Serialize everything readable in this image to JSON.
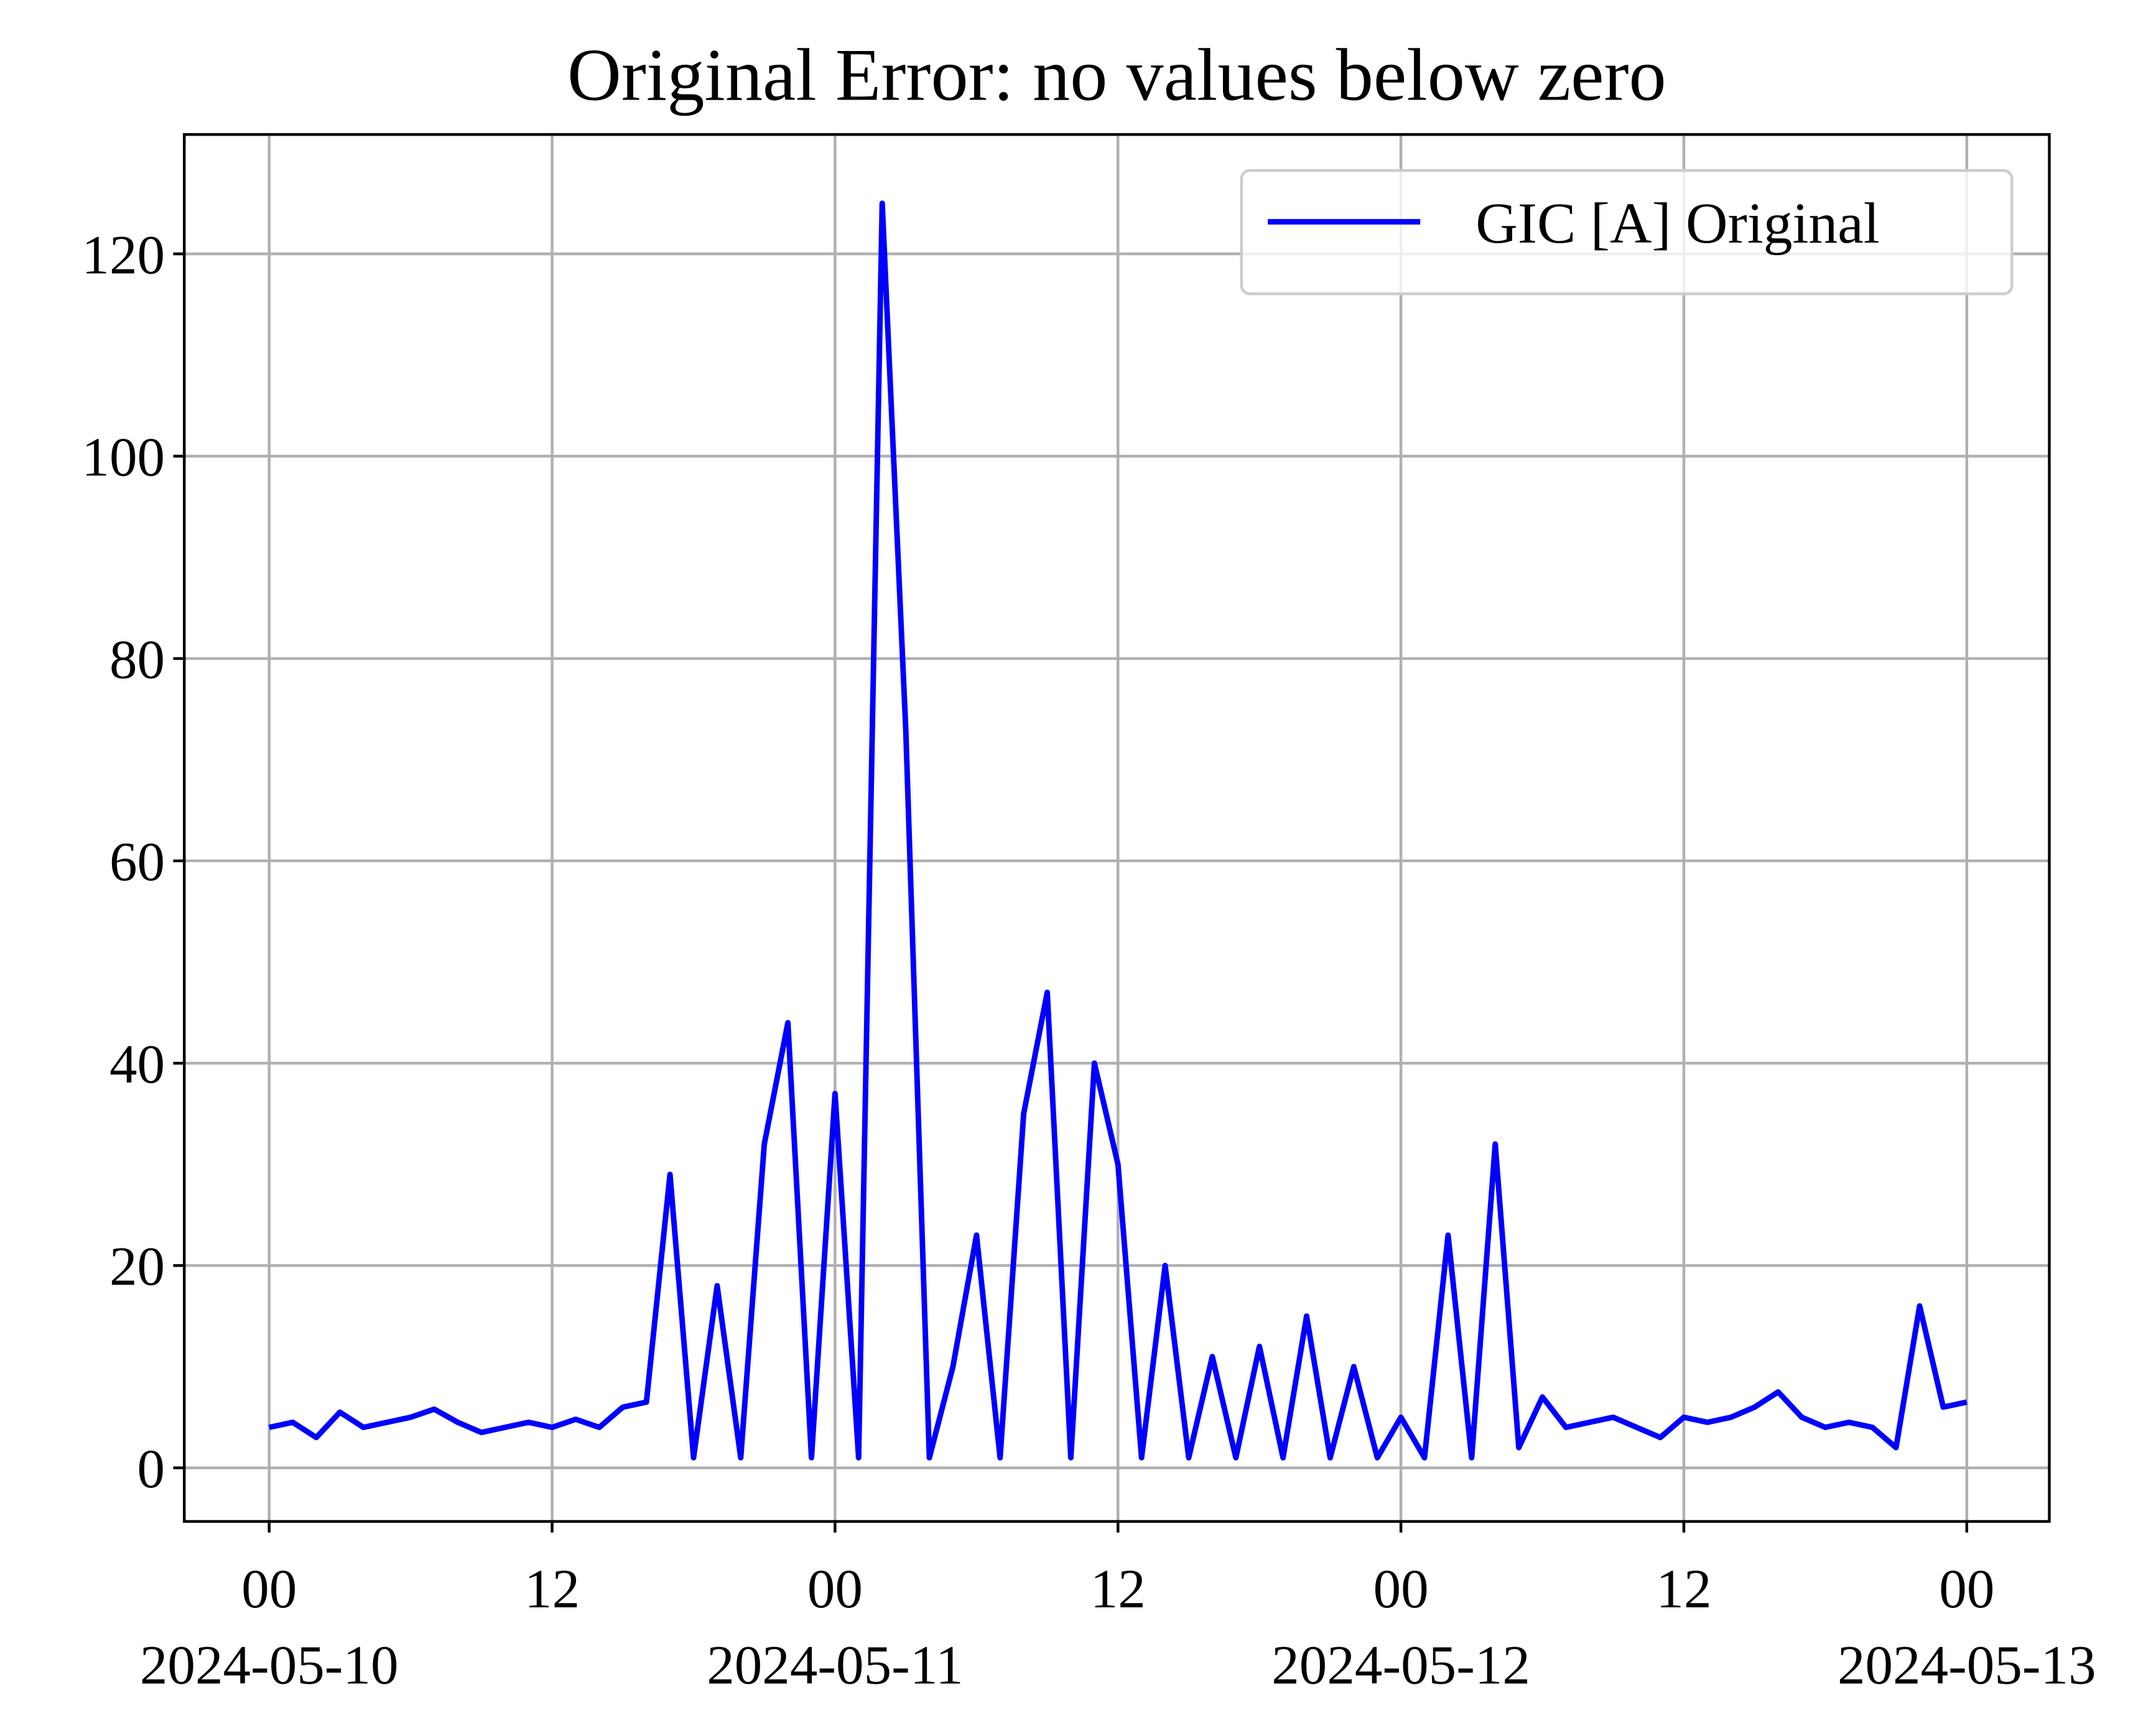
{
  "chart_data": {
    "type": "line",
    "title": "Original Error: no values below zero",
    "x": [
      "2024-05-10T00:00",
      "2024-05-10T01:00",
      "2024-05-10T02:00",
      "2024-05-10T03:00",
      "2024-05-10T04:00",
      "2024-05-10T05:00",
      "2024-05-10T06:00",
      "2024-05-10T07:00",
      "2024-05-10T08:00",
      "2024-05-10T09:00",
      "2024-05-10T10:00",
      "2024-05-10T11:00",
      "2024-05-10T12:00",
      "2024-05-10T13:00",
      "2024-05-10T14:00",
      "2024-05-10T15:00",
      "2024-05-10T16:00",
      "2024-05-10T17:00",
      "2024-05-10T18:00",
      "2024-05-10T19:00",
      "2024-05-10T20:00",
      "2024-05-10T21:00",
      "2024-05-10T22:00",
      "2024-05-10T23:00",
      "2024-05-11T00:00",
      "2024-05-11T01:00",
      "2024-05-11T02:00",
      "2024-05-11T03:00",
      "2024-05-11T04:00",
      "2024-05-11T05:00",
      "2024-05-11T06:00",
      "2024-05-11T07:00",
      "2024-05-11T08:00",
      "2024-05-11T09:00",
      "2024-05-11T10:00",
      "2024-05-11T11:00",
      "2024-05-11T12:00",
      "2024-05-11T13:00",
      "2024-05-11T14:00",
      "2024-05-11T15:00",
      "2024-05-11T16:00",
      "2024-05-11T17:00",
      "2024-05-11T18:00",
      "2024-05-11T19:00",
      "2024-05-11T20:00",
      "2024-05-11T21:00",
      "2024-05-11T22:00",
      "2024-05-11T23:00",
      "2024-05-12T00:00",
      "2024-05-12T01:00",
      "2024-05-12T02:00",
      "2024-05-12T03:00",
      "2024-05-12T04:00",
      "2024-05-12T05:00",
      "2024-05-12T06:00",
      "2024-05-12T07:00",
      "2024-05-12T08:00",
      "2024-05-12T09:00",
      "2024-05-12T10:00",
      "2024-05-12T11:00",
      "2024-05-12T12:00",
      "2024-05-12T13:00",
      "2024-05-12T14:00",
      "2024-05-12T15:00",
      "2024-05-12T16:00",
      "2024-05-12T17:00",
      "2024-05-12T18:00",
      "2024-05-12T19:00",
      "2024-05-12T20:00",
      "2024-05-12T21:00",
      "2024-05-12T22:00",
      "2024-05-12T23:00",
      "2024-05-13T00:00"
    ],
    "series": [
      {
        "name": "GIC [A] Original",
        "color": "#0000ff",
        "values": [
          4,
          4.5,
          3,
          5.5,
          4,
          4.5,
          5,
          5.8,
          4.5,
          3.5,
          4,
          4.5,
          4,
          4.8,
          4,
          6,
          6.5,
          29,
          1,
          18,
          1,
          32,
          44,
          1,
          37,
          1,
          125,
          73,
          1,
          10,
          23,
          1,
          35,
          47,
          1,
          40,
          30,
          1,
          20,
          1,
          11,
          1,
          12,
          1,
          15,
          1,
          10,
          1,
          5,
          1,
          23,
          1,
          32,
          2,
          7,
          4,
          4.5,
          5,
          4,
          3,
          5,
          4.5,
          5,
          6,
          7.5,
          5,
          4,
          4.5,
          4,
          2,
          16,
          6,
          6.5
        ]
      }
    ],
    "xlim": [
      "2024-05-09T20:24",
      "2024-05-13T03:30"
    ],
    "xticks": [
      {
        "value": "2024-05-10T00:00",
        "label": "00\n2024-05-10"
      },
      {
        "value": "2024-05-10T12:00",
        "label": "12"
      },
      {
        "value": "2024-05-11T00:00",
        "label": "00\n2024-05-11"
      },
      {
        "value": "2024-05-11T12:00",
        "label": "12"
      },
      {
        "value": "2024-05-12T00:00",
        "label": "00\n2024-05-12"
      },
      {
        "value": "2024-05-12T12:00",
        "label": "12"
      },
      {
        "value": "2024-05-13T00:00",
        "label": "00\n2024-05-13"
      }
    ],
    "ylim": [
      -5.3,
      131.8
    ],
    "yticks": [
      0,
      20,
      40,
      60,
      80,
      100,
      120
    ],
    "grid": true,
    "legend": "upper right"
  }
}
